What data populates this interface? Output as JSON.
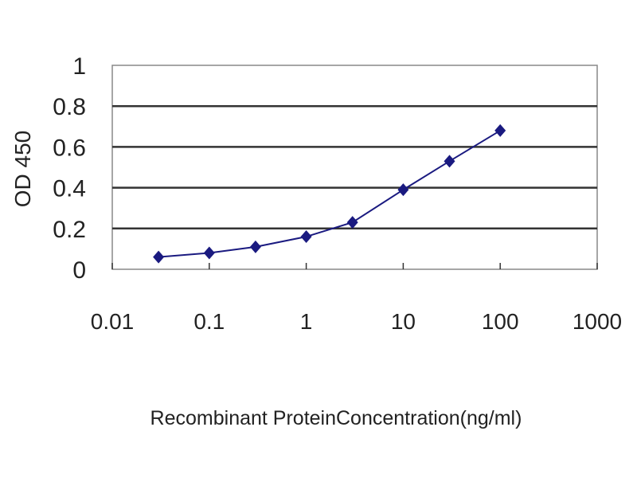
{
  "chart_data": {
    "type": "line",
    "title": "",
    "xlabel": "Recombinant ProteinConcentration(ng/ml)",
    "ylabel": "OD 450",
    "x_scale": "log",
    "xlim": [
      0.01,
      1000
    ],
    "ylim": [
      0,
      1
    ],
    "x_ticks": [
      "0.01",
      "0.1",
      "1",
      "10",
      "100",
      "1000"
    ],
    "y_ticks": [
      "0",
      "0.2",
      "0.4",
      "0.6",
      "0.8",
      "1"
    ],
    "grid": "horizontal",
    "legend": "none",
    "series": [
      {
        "color": "#1a1a80",
        "marker": "diamond",
        "x": [
          0.03,
          0.1,
          0.3,
          1,
          3,
          10,
          30,
          100
        ],
        "y": [
          0.06,
          0.08,
          0.11,
          0.16,
          0.23,
          0.39,
          0.53,
          0.68
        ]
      }
    ]
  }
}
